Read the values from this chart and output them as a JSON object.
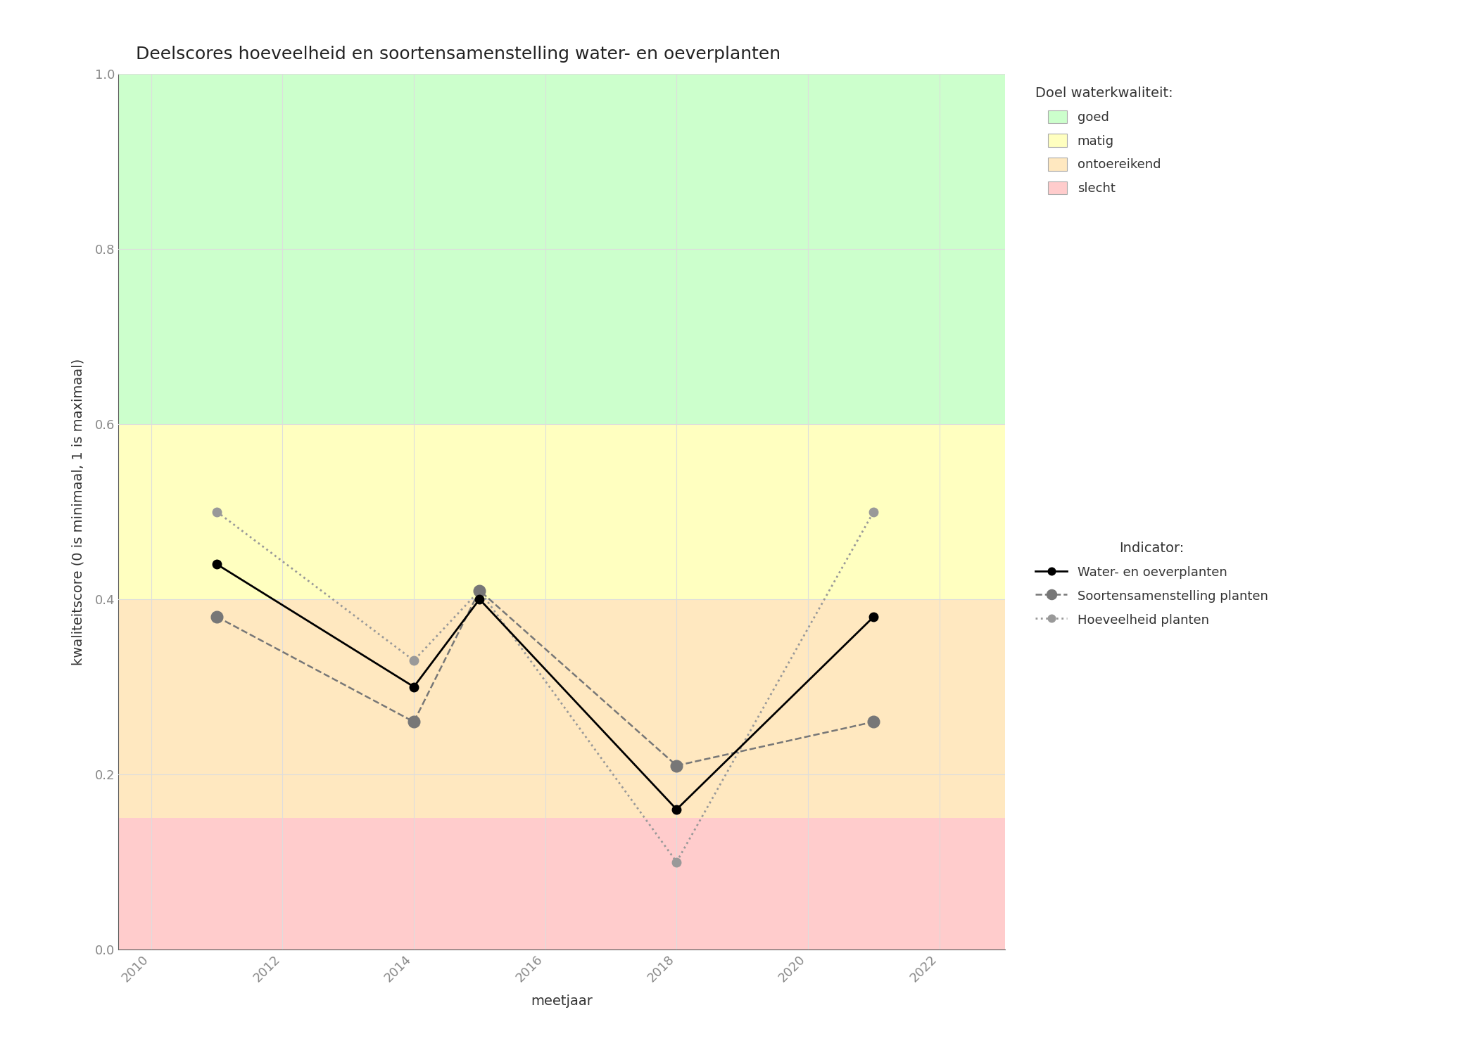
{
  "title": "Deelscores hoeveelheid en soortensamenstelling water- en oeverplanten",
  "xlabel": "meetjaar",
  "ylabel": "kwaliteitscore (0 is minimaal, 1 is maximaal)",
  "xlim": [
    2009.5,
    2023
  ],
  "ylim": [
    0.0,
    1.0
  ],
  "xticks": [
    2010,
    2012,
    2014,
    2016,
    2018,
    2020,
    2022
  ],
  "yticks": [
    0.0,
    0.2,
    0.4,
    0.6,
    0.8,
    1.0
  ],
  "background_bands": [
    {
      "ymin": 0.0,
      "ymax": 0.15,
      "color": "#FFCCCC",
      "label": "slecht"
    },
    {
      "ymin": 0.15,
      "ymax": 0.4,
      "color": "#FFE8C0",
      "label": "ontoereikend"
    },
    {
      "ymin": 0.4,
      "ymax": 0.6,
      "color": "#FFFFC0",
      "label": "matig"
    },
    {
      "ymin": 0.6,
      "ymax": 1.0,
      "color": "#CCFFCC",
      "label": "goed"
    }
  ],
  "series": [
    {
      "name": "Water- en oeverplanten",
      "x": [
        2011,
        2014,
        2015,
        2018,
        2021
      ],
      "y": [
        0.44,
        0.3,
        0.4,
        0.16,
        0.38
      ],
      "color": "#000000",
      "linestyle": "solid",
      "linewidth": 2.0,
      "marker": "o",
      "markersize": 9,
      "zorder": 5
    },
    {
      "name": "Soortensamenstelling planten",
      "x": [
        2011,
        2014,
        2015,
        2018,
        2021
      ],
      "y": [
        0.38,
        0.26,
        0.41,
        0.21,
        0.26
      ],
      "color": "#777777",
      "linestyle": "dashed",
      "linewidth": 1.8,
      "marker": "o",
      "markersize": 12,
      "zorder": 4
    },
    {
      "name": "Hoeveelheid planten",
      "x": [
        2011,
        2014,
        2015,
        2018,
        2021
      ],
      "y": [
        0.5,
        0.33,
        0.41,
        0.1,
        0.5
      ],
      "color": "#999999",
      "linestyle": "dotted",
      "linewidth": 2.0,
      "marker": "o",
      "markersize": 9,
      "zorder": 3
    }
  ],
  "legend_title_bg": "Doel waterkwaliteit:",
  "legend_title_series": "Indicator:",
  "grid_color": "#DDDDDD",
  "grid_linewidth": 0.8,
  "background_color": "#FFFFFF",
  "title_fontsize": 18,
  "axis_label_fontsize": 14,
  "tick_fontsize": 13,
  "legend_fontsize": 13
}
